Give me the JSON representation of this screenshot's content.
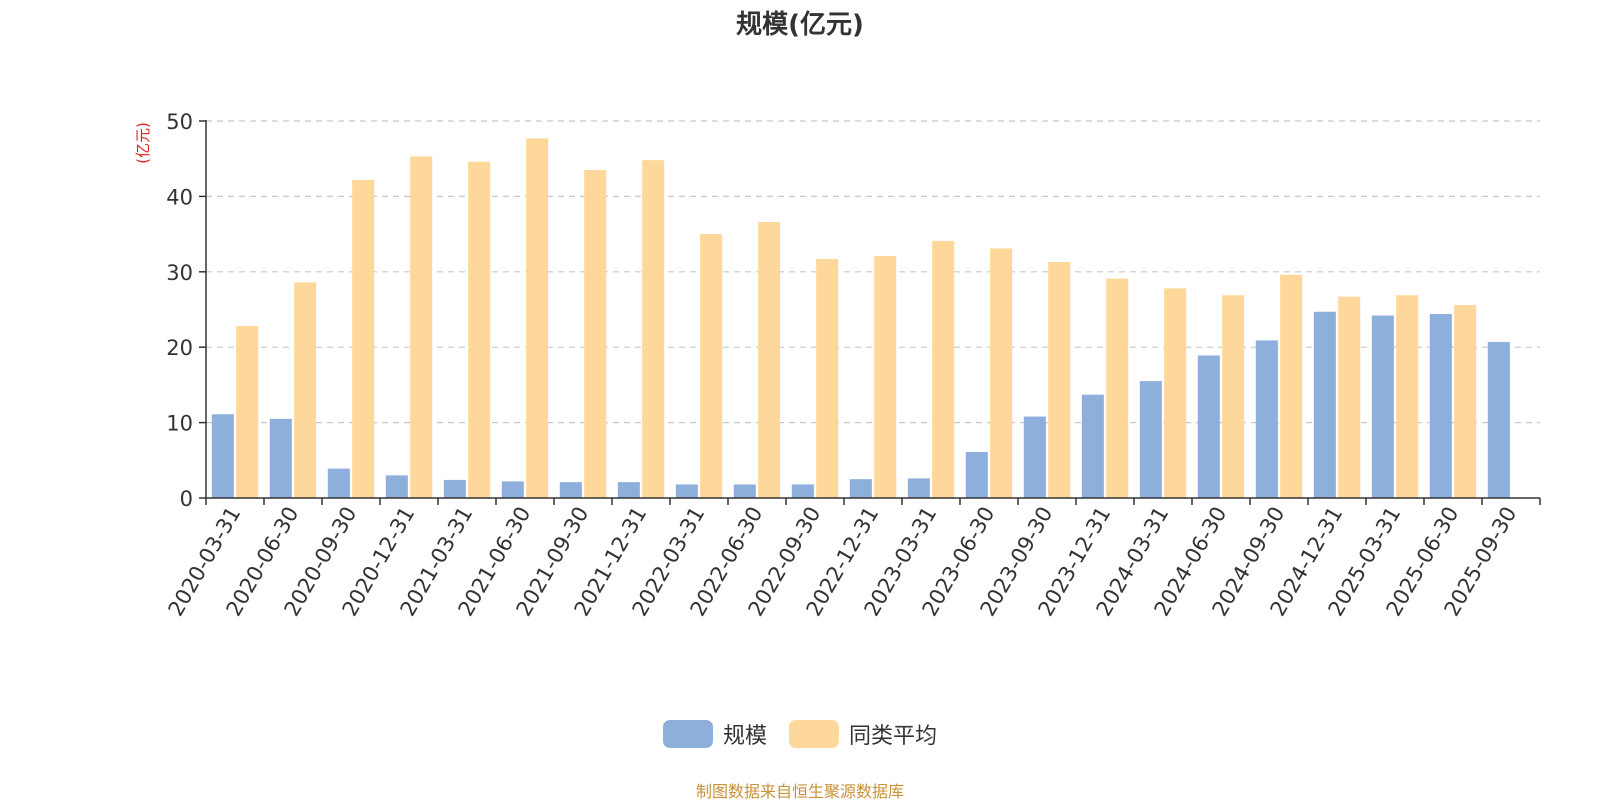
{
  "chart_data": {
    "type": "bar",
    "title": "规模(亿元)",
    "ylabel": "(亿元)",
    "ylim": [
      0,
      50
    ],
    "yticks": [
      0,
      10,
      20,
      30,
      40,
      50
    ],
    "grid": true,
    "legend_position": "bottom",
    "categories": [
      "2020-03-31",
      "2020-06-30",
      "2020-09-30",
      "2020-12-31",
      "2021-03-31",
      "2021-06-30",
      "2021-09-30",
      "2021-12-31",
      "2022-03-31",
      "2022-06-30",
      "2022-09-30",
      "2022-12-31",
      "2023-03-31",
      "2023-06-30",
      "2023-09-30",
      "2023-12-31",
      "2024-03-31",
      "2024-06-30",
      "2024-09-30",
      "2024-12-31",
      "2025-03-31",
      "2025-06-30",
      "2025-09-30"
    ],
    "series": [
      {
        "name": "规模",
        "color": "#8eaedc",
        "values": [
          11.1,
          10.5,
          3.9,
          3.0,
          2.4,
          2.2,
          2.1,
          2.1,
          1.8,
          1.8,
          1.8,
          2.5,
          2.6,
          6.1,
          10.8,
          13.7,
          15.5,
          18.9,
          20.9,
          24.7,
          24.2,
          24.4,
          20.7
        ]
      },
      {
        "name": "同类平均",
        "color": "#fdd89a",
        "values": [
          22.8,
          28.6,
          42.2,
          45.3,
          44.6,
          47.7,
          43.5,
          44.8,
          35.0,
          36.6,
          31.7,
          32.1,
          34.1,
          33.1,
          31.3,
          29.1,
          27.8,
          26.9,
          29.6,
          26.7,
          26.9,
          25.6,
          null
        ]
      }
    ]
  },
  "source_note": "制图数据来自恒生聚源数据库"
}
